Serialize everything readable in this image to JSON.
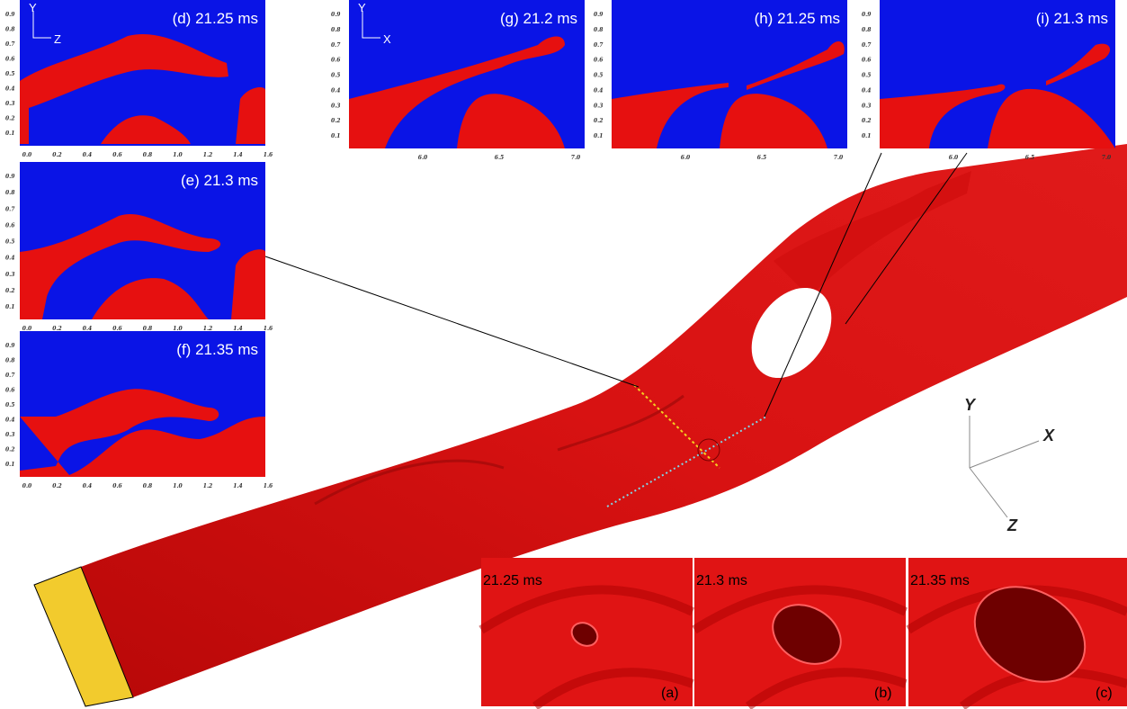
{
  "left_panels": [
    {
      "label": "(d) 21.25 ms",
      "axis_up": "Y",
      "axis_right": "Z",
      "yticks": [
        "0.9",
        "0.8",
        "0.7",
        "0.6",
        "0.5",
        "0.4",
        "0.3",
        "0.2",
        "0.1"
      ],
      "xticks": [
        "0.0",
        "0.2",
        "0.4",
        "0.6",
        "0.8",
        "1.0",
        "1.2",
        "1.4",
        "1.6"
      ]
    },
    {
      "label": "(e) 21.3 ms",
      "yticks": [
        "0.9",
        "0.8",
        "0.7",
        "0.6",
        "0.5",
        "0.4",
        "0.3",
        "0.2",
        "0.1"
      ],
      "xticks": [
        "0.0",
        "0.2",
        "0.4",
        "0.6",
        "0.8",
        "1.0",
        "1.2",
        "1.4",
        "1.6"
      ]
    },
    {
      "label": "(f) 21.35 ms",
      "yticks": [
        "0.9",
        "0.8",
        "0.7",
        "0.6",
        "0.5",
        "0.4",
        "0.3",
        "0.2",
        "0.1"
      ],
      "xticks": [
        "0.0",
        "0.2",
        "0.4",
        "0.6",
        "0.8",
        "1.0",
        "1.2",
        "1.4",
        "1.6"
      ]
    }
  ],
  "top_panels": [
    {
      "label": "(g) 21.2 ms",
      "axis_up": "Y",
      "axis_right": "X",
      "yticks": [
        "0.9",
        "0.8",
        "0.7",
        "0.6",
        "0.5",
        "0.4",
        "0.3",
        "0.2",
        "0.1"
      ],
      "xticks": [
        "6.0",
        "6.5",
        "7.0"
      ]
    },
    {
      "label": "(h) 21.25 ms",
      "yticks": [
        "0.9",
        "0.8",
        "0.7",
        "0.6",
        "0.5",
        "0.4",
        "0.3",
        "0.2",
        "0.1"
      ],
      "xticks": [
        "6.0",
        "6.5",
        "7.0"
      ]
    },
    {
      "label": "(i) 21.3 ms",
      "yticks": [
        "0.9",
        "0.8",
        "0.7",
        "0.6",
        "0.5",
        "0.4",
        "0.3",
        "0.2",
        "0.1"
      ],
      "xticks": [
        "6.0",
        "6.5",
        "7.0"
      ]
    }
  ],
  "axes_3d": {
    "y": "Y",
    "x": "X",
    "z": "Z"
  },
  "insets": [
    {
      "time": "21.25 ms",
      "tag": "(a)"
    },
    {
      "time": "21.3 ms",
      "tag": "(b)"
    },
    {
      "time": "21.35 ms",
      "tag": "(c)"
    }
  ]
}
